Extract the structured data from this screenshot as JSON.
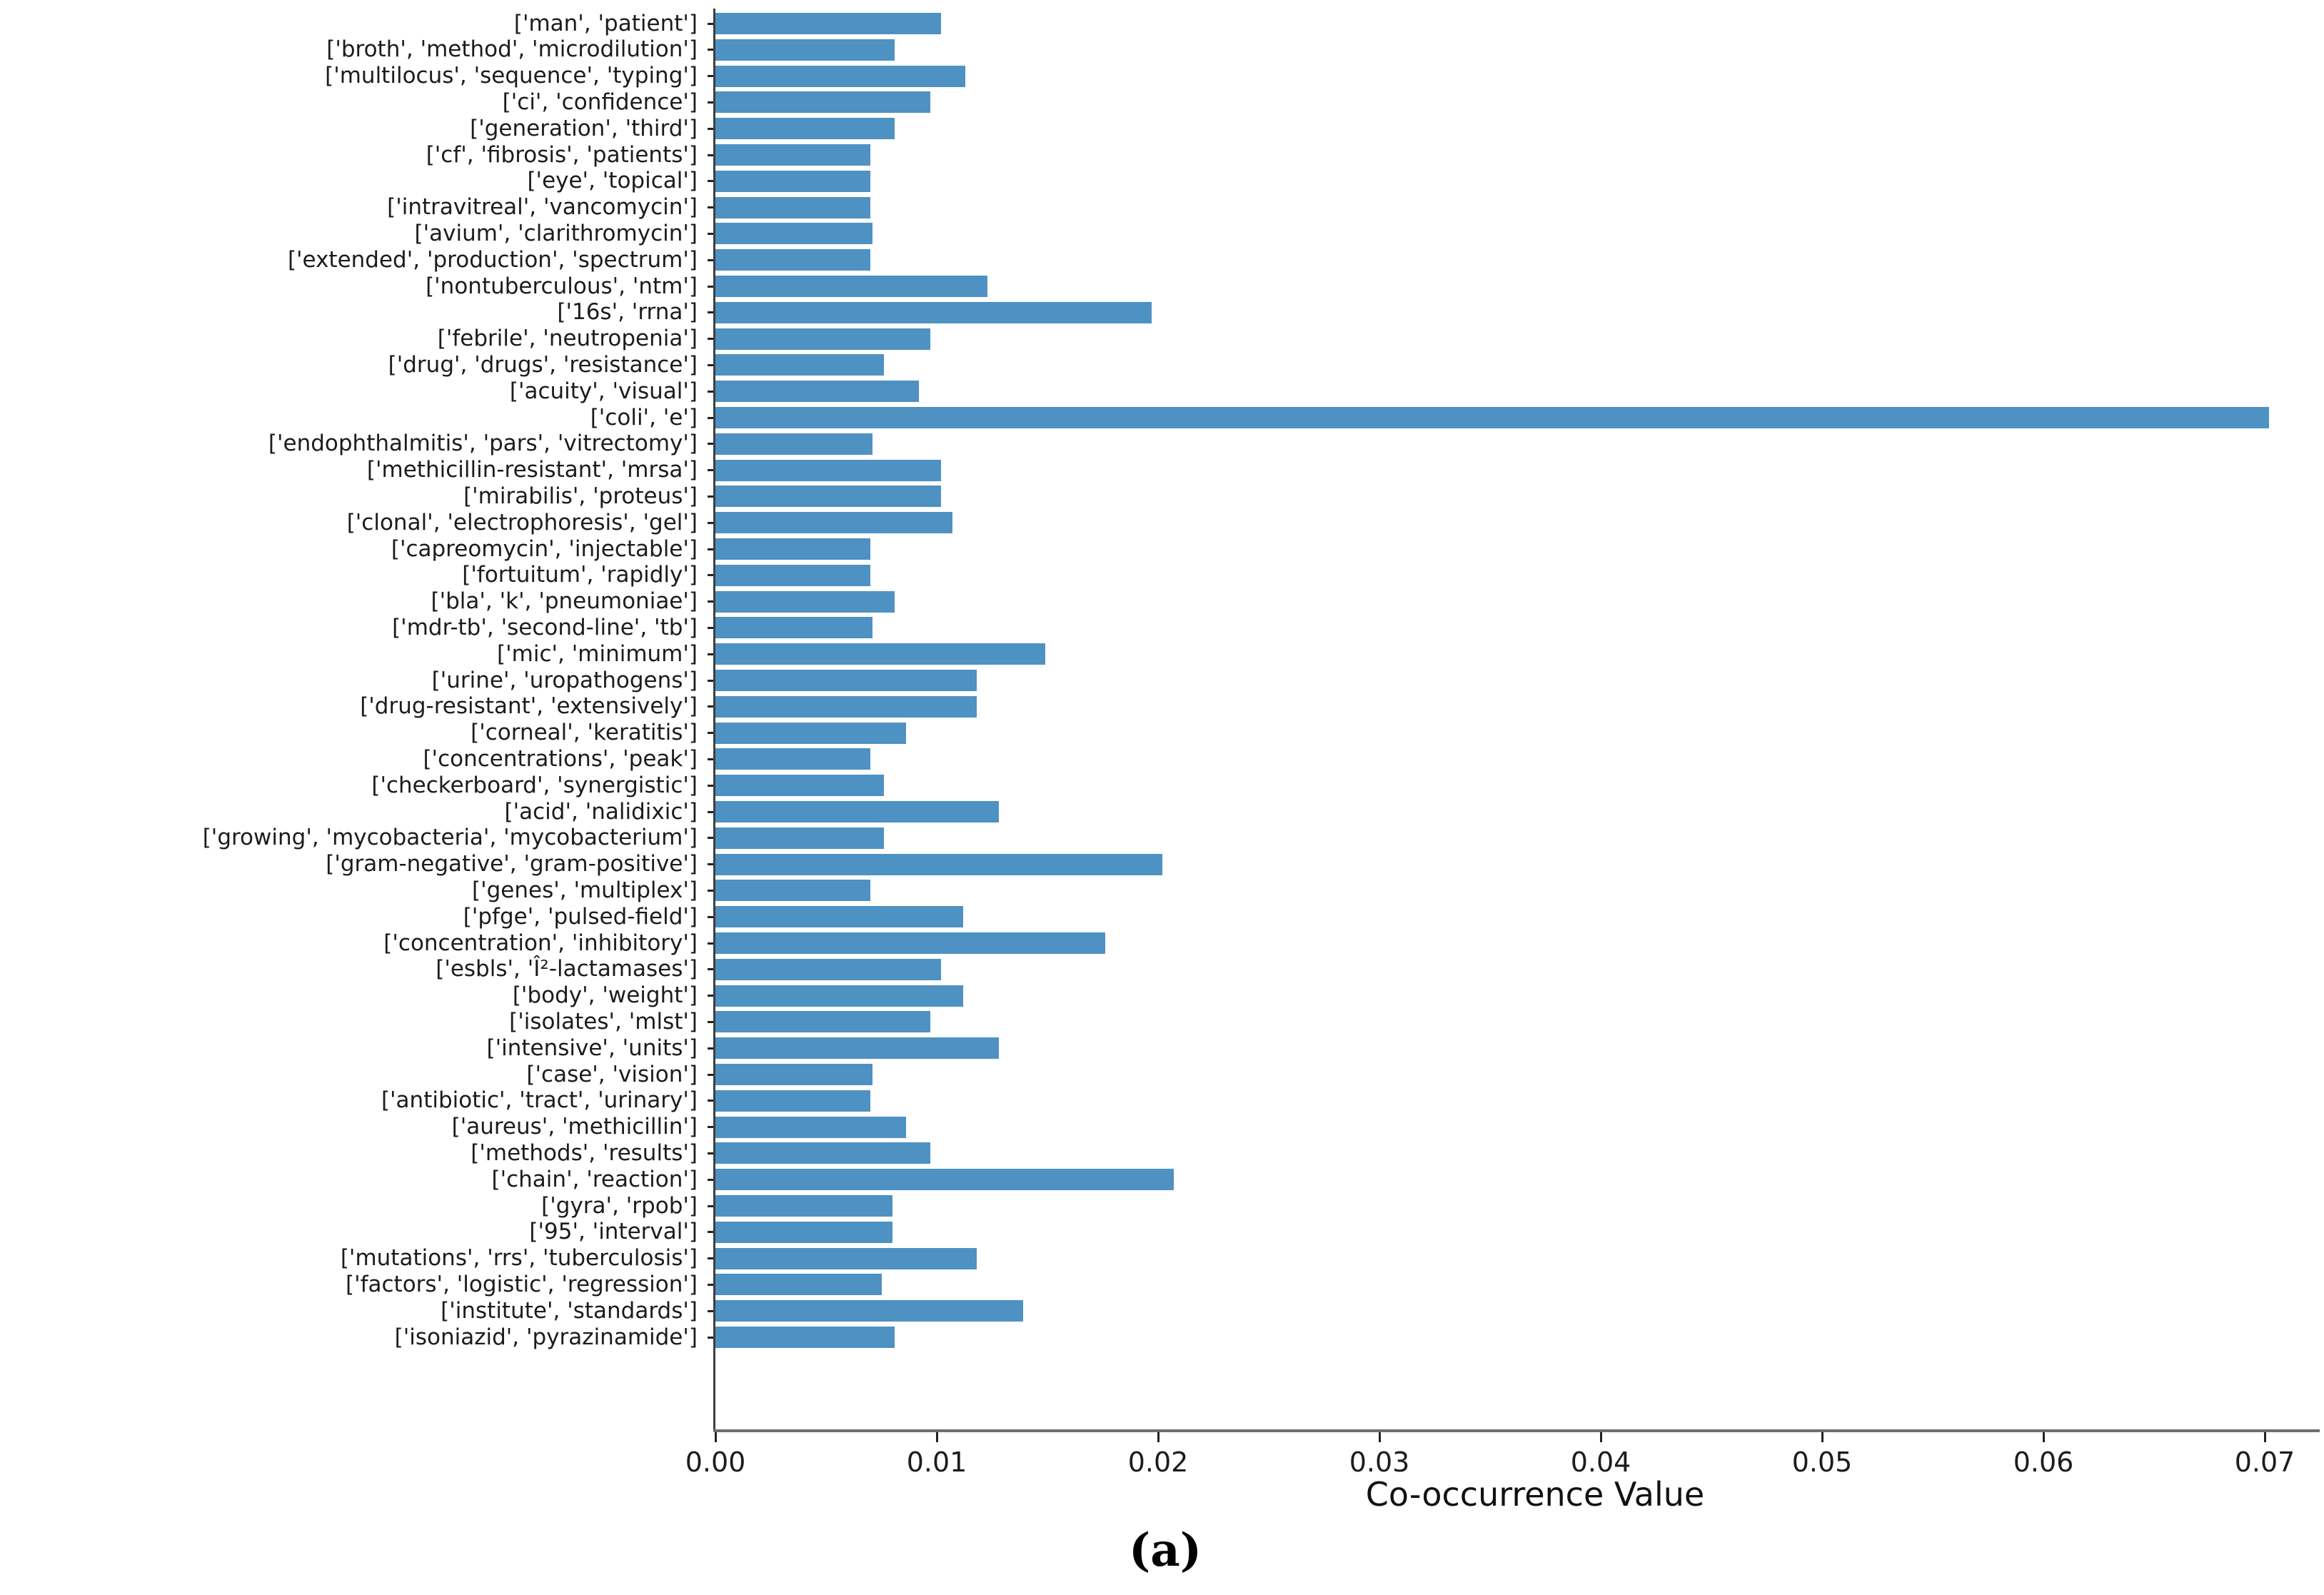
{
  "chart_data": {
    "type": "bar",
    "orientation": "horizontal",
    "title": "",
    "xlabel": "Co-occurrence Value",
    "ylabel": "",
    "caption": "(a)",
    "xlim": [
      0.0,
      0.073
    ],
    "grid": false,
    "legend_position": "none",
    "bar_color": "#4e91c3",
    "axis_color": "#3f3f3f",
    "xtick_labels": [
      "0.00",
      "0.01",
      "0.02",
      "0.03",
      "0.04",
      "0.05",
      "0.06",
      "0.07"
    ],
    "xtick_values": [
      0.0,
      0.01,
      0.02,
      0.03,
      0.04,
      0.05,
      0.06,
      0.07
    ],
    "categories": [
      "['man', 'patient']",
      "['broth', 'method', 'microdilution']",
      "['multilocus', 'sequence', 'typing']",
      "['ci', 'confidence']",
      "['generation', 'third']",
      "['cf', 'fibrosis', 'patients']",
      "['eye', 'topical']",
      "['intravitreal', 'vancomycin']",
      "['avium', 'clarithromycin']",
      "['extended', 'production', 'spectrum']",
      "['nontuberculous', 'ntm']",
      "['16s', 'rrna']",
      "['febrile', 'neutropenia']",
      "['drug', 'drugs', 'resistance']",
      "['acuity', 'visual']",
      "['coli', 'e']",
      "['endophthalmitis', 'pars', 'vitrectomy']",
      "['methicillin-resistant', 'mrsa']",
      "['mirabilis', 'proteus']",
      "['clonal', 'electrophoresis', 'gel']",
      "['capreomycin', 'injectable']",
      "['fortuitum', 'rapidly']",
      "['bla', 'k', 'pneumoniae']",
      "['mdr-tb', 'second-line', 'tb']",
      "['mic', 'minimum']",
      "['urine', 'uropathogens']",
      "['drug-resistant', 'extensively']",
      "['corneal', 'keratitis']",
      "['concentrations', 'peak']",
      "['checkerboard', 'synergistic']",
      "['acid', 'nalidixic']",
      "['growing', 'mycobacteria', 'mycobacterium']",
      "['gram-negative', 'gram-positive']",
      "['genes', 'multiplex']",
      "['pfge', 'pulsed-field']",
      "['concentration', 'inhibitory']",
      "['esbls', 'Î²-lactamases']",
      "['body', 'weight']",
      "['isolates', 'mlst']",
      "['intensive', 'units']",
      "['case', 'vision']",
      "['antibiotic', 'tract', 'urinary']",
      "['aureus', 'methicillin']",
      "['methods', 'results']",
      "['chain', 'reaction']",
      "['gyra', 'rpob']",
      "['95', 'interval']",
      "['mutations', 'rrs', 'tuberculosis']",
      "['factors', 'logistic', 'regression']",
      "['institute', 'standards']",
      "['isoniazid', 'pyrazinamide']"
    ],
    "values": [
      0.0102,
      0.0081,
      0.0113,
      0.0097,
      0.0081,
      0.007,
      0.007,
      0.007,
      0.0071,
      0.007,
      0.0123,
      0.0197,
      0.0097,
      0.0076,
      0.0092,
      0.0702,
      0.0071,
      0.0102,
      0.0102,
      0.0107,
      0.007,
      0.007,
      0.0081,
      0.0071,
      0.0149,
      0.0118,
      0.0118,
      0.0086,
      0.007,
      0.0076,
      0.0128,
      0.0076,
      0.0202,
      0.007,
      0.0112,
      0.0176,
      0.0102,
      0.0112,
      0.0097,
      0.0128,
      0.0071,
      0.007,
      0.0086,
      0.0097,
      0.0207,
      0.008,
      0.008,
      0.0118,
      0.0075,
      0.0139,
      0.0081
    ]
  }
}
